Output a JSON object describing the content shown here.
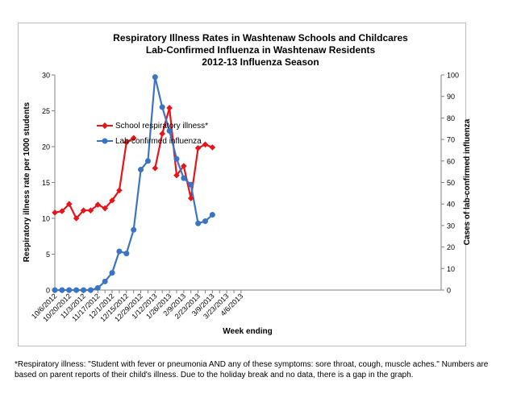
{
  "chart_data": {
    "type": "line",
    "title": "Respiratory Illness Rates in Washtenaw Schools and Childcares",
    "subtitle": "Lab-Confirmed Influenza in Washtenaw Residents",
    "season": "2012-13 Influenza Season",
    "xlabel": "Week ending",
    "ylabel_left": "Respiratory illness rate per 1000 students",
    "ylabel_right": "Cases of lab-confirmed influenza",
    "ylim_left": [
      0,
      30
    ],
    "ylim_right": [
      0,
      100
    ],
    "yticks_left": [
      "0",
      "5",
      "10",
      "15",
      "20",
      "25",
      "30"
    ],
    "yticks_right": [
      "0",
      "10",
      "20",
      "30",
      "40",
      "50",
      "60",
      "70",
      "80",
      "90",
      "100"
    ],
    "xtick_labels": [
      "10/6/2012",
      "10/20/2012",
      "11/3/2012",
      "11/17/2012",
      "12/1/2012",
      "12/15/2012",
      "12/29/2012",
      "1/12/2013",
      "1/26/2013",
      "2/9/2013",
      "2/23/2013",
      "3/9/2013",
      "3/23/2013",
      "4/6/2013"
    ],
    "weeks": [
      "10/6/2012",
      "10/13/2012",
      "10/20/2012",
      "10/27/2012",
      "11/3/2012",
      "11/10/2012",
      "11/17/2012",
      "11/24/2012",
      "12/1/2012",
      "12/8/2012",
      "12/15/2012",
      "12/22/2012",
      "12/29/2012",
      "1/5/2013",
      "1/12/2013",
      "1/19/2013",
      "1/26/2013",
      "2/2/2013",
      "2/9/2013",
      "2/16/2013",
      "2/23/2013",
      "3/2/2013",
      "3/9/2013",
      "3/16/2013",
      "3/23/2013",
      "3/30/2013",
      "4/6/2013"
    ],
    "legend_position": "left-middle",
    "grid": false,
    "series": [
      {
        "name": "School respiratory illness*",
        "axis": "left",
        "color": "#e8141b",
        "marker": "diamond",
        "values": [
          10.8,
          11.0,
          12.0,
          10.0,
          11.1,
          11.1,
          11.9,
          11.4,
          12.5,
          13.9,
          20.6,
          21.2,
          null,
          null,
          17.0,
          21.8,
          25.4,
          16.0,
          17.3,
          12.8,
          19.8,
          20.3,
          19.9,
          null,
          null,
          null,
          null
        ]
      },
      {
        "name": "Lab-confirmed influenza",
        "axis": "right",
        "color": "#3c74c4",
        "marker": "circle",
        "values": [
          0,
          0,
          0,
          0,
          0,
          0,
          1,
          4,
          8,
          18,
          17,
          28,
          56,
          60,
          99,
          85,
          74,
          61,
          52,
          49,
          31,
          32,
          35,
          null,
          null,
          null,
          null
        ]
      }
    ]
  },
  "footnote": "*Respiratory illness: \"Student with fever or pneumonia AND any of these symptoms: sore throat, cough, muscle aches.\" Numbers are based on parent reports of their child's illness. Due to the  holiday break and no data, there is a gap in the graph."
}
